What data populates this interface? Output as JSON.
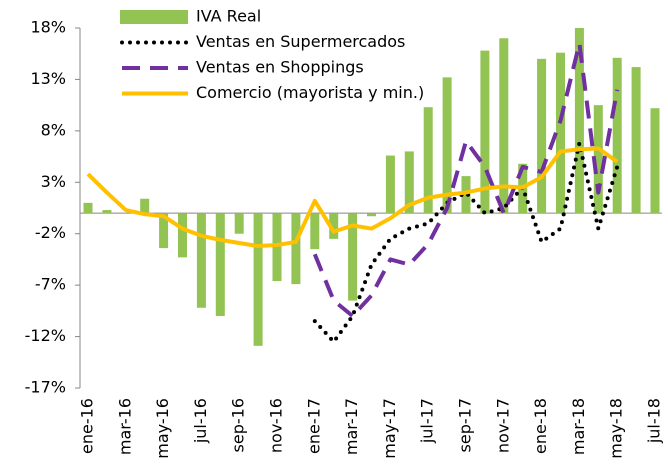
{
  "chart_data": {
    "type": "bar-line",
    "categories": [
      "ene-16",
      null,
      "mar-16",
      null,
      "may-16",
      null,
      "jul-16",
      null,
      "sep-16",
      null,
      "nov-16",
      null,
      "ene-17",
      null,
      "mar-17",
      null,
      "may-17",
      null,
      "jul-17",
      null,
      "sep-17",
      null,
      "nov-17",
      null,
      "ene-18",
      null,
      "mar-18",
      null,
      "may-18",
      null,
      "jul-18"
    ],
    "ylim": [
      -17,
      18
    ],
    "yticks": [
      {
        "value": 18,
        "label": "18%"
      },
      {
        "value": 13,
        "label": "13%"
      },
      {
        "value": 8,
        "label": "8%"
      },
      {
        "value": 3,
        "label": "3%"
      },
      {
        "value": -2,
        "label": "-2%"
      },
      {
        "value": -7,
        "label": "-7%"
      },
      {
        "value": -12,
        "label": "-12%"
      },
      {
        "value": -17,
        "label": "-17%"
      }
    ],
    "series": [
      {
        "name": "IVA Real",
        "kind": "bar",
        "color": "#92c353",
        "values": [
          1.0,
          0.3,
          0,
          1.4,
          -3.4,
          -4.3,
          -9.2,
          -10.0,
          -2.0,
          -12.9,
          -6.6,
          -6.9,
          -3.5,
          -2.5,
          -8.5,
          -0.3,
          5.6,
          6.0,
          10.3,
          13.2,
          3.6,
          15.8,
          17.0,
          4.8,
          15.0,
          15.6,
          18.0,
          10.5,
          15.1,
          14.2,
          10.2
        ]
      },
      {
        "name": "Ventas en Supermercados",
        "kind": "dotted",
        "color": "#000000",
        "values": [
          null,
          null,
          null,
          null,
          null,
          null,
          null,
          null,
          null,
          null,
          null,
          null,
          -10.5,
          -12.5,
          -10.0,
          -5.0,
          -2.5,
          -1.5,
          -1.0,
          1.0,
          2.0,
          0.0,
          0.5,
          2.5,
          -2.8,
          -1.5,
          6.8,
          -1.5,
          4.5,
          null,
          null
        ]
      },
      {
        "name": "Ventas en Shoppings",
        "kind": "dashed",
        "color": "#7030a0",
        "values": [
          null,
          null,
          null,
          null,
          null,
          null,
          null,
          null,
          null,
          null,
          null,
          null,
          -4.0,
          -8.5,
          -10.0,
          -8.0,
          -4.5,
          -5.0,
          -3.0,
          0.5,
          7.0,
          4.5,
          0.0,
          4.5,
          4.0,
          9.0,
          16.5,
          2.0,
          12.0,
          null,
          null
        ]
      },
      {
        "name": "Comercio (mayorista y min.)",
        "kind": "solid",
        "color": "#ffc000",
        "values": [
          3.8,
          2.0,
          0.3,
          -0.1,
          -0.3,
          -1.5,
          -2.2,
          -2.6,
          -2.9,
          -3.2,
          -3.1,
          -2.8,
          1.2,
          -1.8,
          -1.2,
          -1.5,
          -0.5,
          0.8,
          1.5,
          1.8,
          2.0,
          2.4,
          2.6,
          2.5,
          3.5,
          6.0,
          6.2,
          6.3,
          5.0,
          null,
          null
        ]
      }
    ]
  }
}
